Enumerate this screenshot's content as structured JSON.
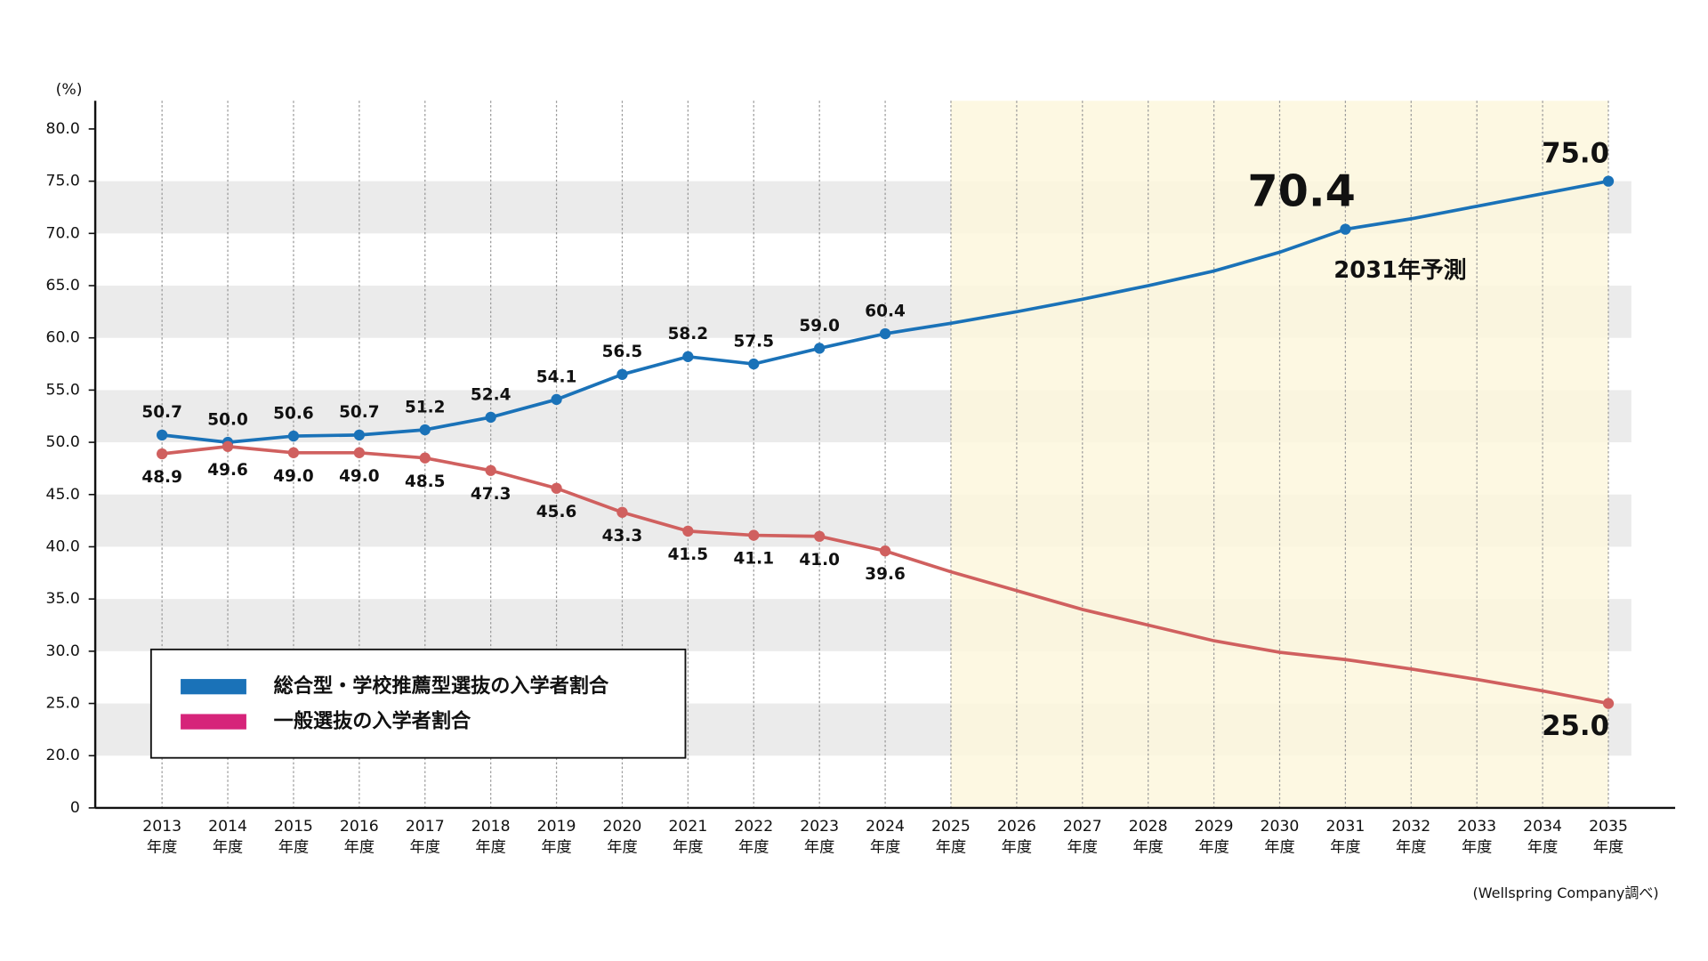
{
  "chart_data": {
    "type": "line",
    "y_unit": "(%)",
    "source": "(Wellspring Company調べ)",
    "categories": [
      "2013年度",
      "2014年度",
      "2015年度",
      "2016年度",
      "2017年度",
      "2018年度",
      "2019年度",
      "2020年度",
      "2021年度",
      "2022年度",
      "2023年度",
      "2024年度",
      "2025年度",
      "2026年度",
      "2027年度",
      "2028年度",
      "2029年度",
      "2030年度",
      "2031年度",
      "2032年度",
      "2033年度",
      "2034年度",
      "2035年度"
    ],
    "series": [
      {
        "name": "総合型・学校推薦型選抜の入学者割合",
        "color": "#1a72b8",
        "legend_color": "#1a72b8",
        "values": [
          50.7,
          50.0,
          50.6,
          50.7,
          51.2,
          52.4,
          54.1,
          56.5,
          58.2,
          57.5,
          59.0,
          60.4,
          61.4,
          62.5,
          63.7,
          65.0,
          66.4,
          68.2,
          70.4,
          71.4,
          72.6,
          73.8,
          75.0
        ],
        "value_labels": [
          "50.7",
          "50.0",
          "50.6",
          "50.7",
          "51.2",
          "52.4",
          "54.1",
          "56.5",
          "58.2",
          "57.5",
          "59.0",
          "60.4",
          null,
          null,
          null,
          null,
          null,
          null,
          "70.4",
          null,
          null,
          null,
          "75.0"
        ],
        "label_side": "above"
      },
      {
        "name": "一般選抜の入学者割合",
        "color": "#d0605f",
        "legend_color": "#d6247a",
        "values": [
          48.9,
          49.6,
          49.0,
          49.0,
          48.5,
          47.3,
          45.6,
          43.3,
          41.5,
          41.1,
          41.0,
          39.6,
          37.6,
          35.8,
          34.0,
          32.5,
          31.0,
          29.9,
          29.2,
          28.3,
          27.3,
          26.2,
          25.0
        ],
        "value_labels": [
          "48.9",
          "49.6",
          "49.0",
          "49.0",
          "48.5",
          "47.3",
          "45.6",
          "43.3",
          "41.5",
          "41.1",
          "41.0",
          "39.6",
          null,
          null,
          null,
          null,
          null,
          null,
          null,
          null,
          null,
          null,
          "25.0"
        ],
        "label_side": "below"
      }
    ],
    "annotations": [
      {
        "text": "2031年予測",
        "series": 0,
        "index": 18
      }
    ],
    "ylim": [
      0,
      82.7
    ],
    "axis_break": [
      0,
      15
    ],
    "yticks": [
      0,
      {
        "value": 20,
        "label": "20.0"
      },
      {
        "value": 25,
        "label": "25.0"
      },
      {
        "value": 30,
        "label": "30.0"
      },
      {
        "value": 35,
        "label": "35.0"
      },
      {
        "value": 40,
        "label": "40.0"
      },
      {
        "value": 45,
        "label": "45.0"
      },
      {
        "value": 50,
        "label": "50.0"
      },
      {
        "value": 55,
        "label": "55.0"
      },
      {
        "value": 60,
        "label": "60.0"
      },
      {
        "value": 65,
        "label": "65.0"
      },
      {
        "value": 70,
        "label": "70.0"
      },
      {
        "value": 75,
        "label": "75.0"
      },
      {
        "value": 80,
        "label": "80.0"
      }
    ],
    "band_color": "#ebebeb",
    "highlight": {
      "from": 12,
      "to": 22,
      "color": "#fdf7dd"
    },
    "legend": "lower left"
  }
}
